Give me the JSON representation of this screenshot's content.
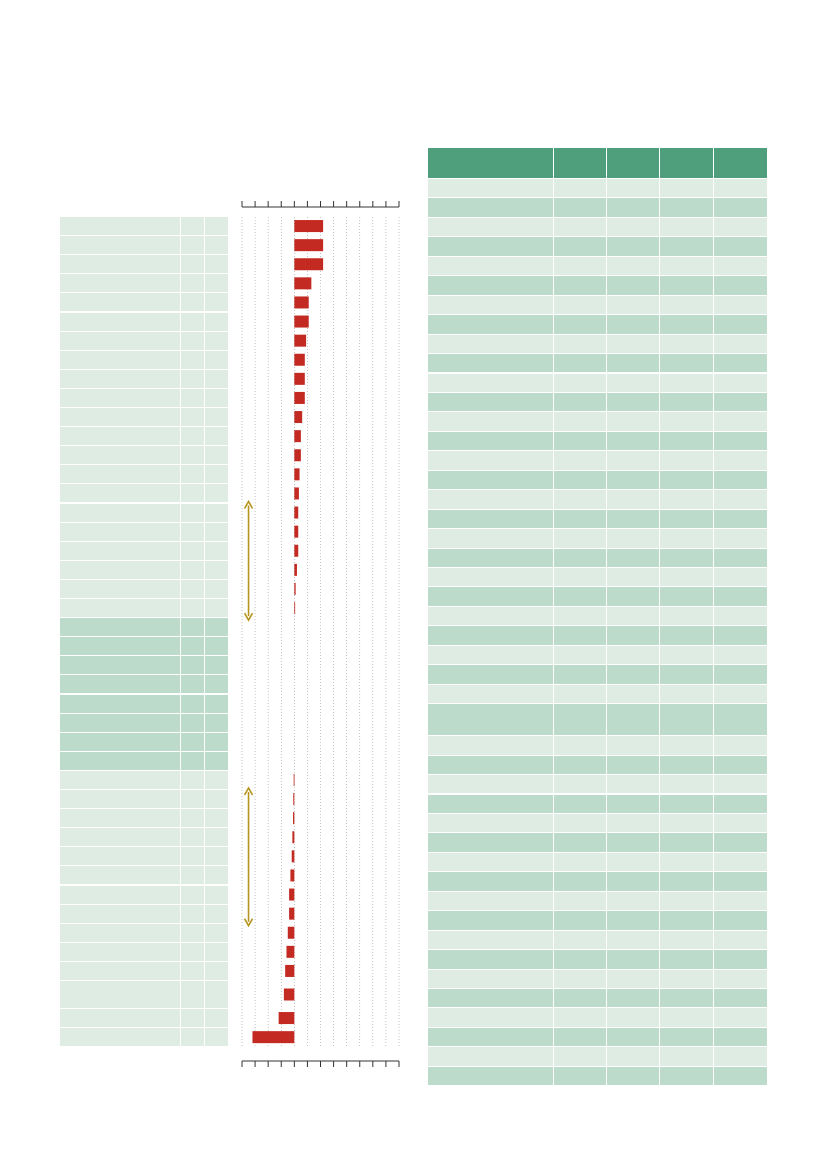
{
  "colors": {
    "light_row": "#deece3",
    "dark_row": "#bddbcb",
    "header": "#509f7c",
    "bar": "#c32a22",
    "arrow": "#b6941d",
    "axis": "#333333",
    "grid": "#9a9a9a"
  },
  "left_table": {
    "columns": 3,
    "rows": [
      {
        "tone": "light",
        "cells": [
          "",
          "",
          ""
        ]
      },
      {
        "tone": "light",
        "cells": [
          "",
          "",
          ""
        ]
      },
      {
        "tone": "light",
        "cells": [
          "",
          "",
          ""
        ]
      },
      {
        "tone": "light",
        "cells": [
          "",
          "",
          ""
        ]
      },
      {
        "tone": "light",
        "cells": [
          "",
          "",
          ""
        ]
      },
      {
        "tone": "light",
        "cells": [
          "",
          "",
          ""
        ]
      },
      {
        "tone": "light",
        "cells": [
          "",
          "",
          ""
        ]
      },
      {
        "tone": "light",
        "cells": [
          "",
          "",
          ""
        ]
      },
      {
        "tone": "light",
        "cells": [
          "",
          "",
          ""
        ]
      },
      {
        "tone": "light",
        "cells": [
          "",
          "",
          ""
        ]
      },
      {
        "tone": "light",
        "cells": [
          "",
          "",
          ""
        ]
      },
      {
        "tone": "light",
        "cells": [
          "",
          "",
          ""
        ]
      },
      {
        "tone": "light",
        "cells": [
          "",
          "",
          ""
        ]
      },
      {
        "tone": "light",
        "cells": [
          "",
          "",
          ""
        ]
      },
      {
        "tone": "light",
        "cells": [
          "",
          "",
          ""
        ]
      },
      {
        "tone": "light",
        "cells": [
          "",
          "",
          ""
        ]
      },
      {
        "tone": "light",
        "cells": [
          "",
          "",
          ""
        ]
      },
      {
        "tone": "light",
        "cells": [
          "",
          "",
          ""
        ]
      },
      {
        "tone": "light",
        "cells": [
          "",
          "",
          ""
        ]
      },
      {
        "tone": "light",
        "cells": [
          "",
          "",
          ""
        ]
      },
      {
        "tone": "light",
        "cells": [
          "",
          "",
          ""
        ]
      },
      {
        "tone": "dark",
        "cells": [
          "",
          "",
          ""
        ]
      },
      {
        "tone": "dark",
        "cells": [
          "",
          "",
          ""
        ]
      },
      {
        "tone": "dark",
        "cells": [
          "",
          "",
          ""
        ]
      },
      {
        "tone": "dark",
        "cells": [
          "",
          "",
          ""
        ]
      },
      {
        "tone": "dark",
        "cells": [
          "",
          "",
          ""
        ]
      },
      {
        "tone": "dark",
        "cells": [
          "",
          "",
          ""
        ]
      },
      {
        "tone": "dark",
        "cells": [
          "",
          "",
          ""
        ]
      },
      {
        "tone": "dark",
        "cells": [
          "",
          "",
          ""
        ]
      },
      {
        "tone": "light",
        "cells": [
          "",
          "",
          ""
        ]
      },
      {
        "tone": "light",
        "cells": [
          "",
          "",
          ""
        ]
      },
      {
        "tone": "light",
        "cells": [
          "",
          "",
          ""
        ]
      },
      {
        "tone": "light",
        "cells": [
          "",
          "",
          ""
        ]
      },
      {
        "tone": "light",
        "cells": [
          "",
          "",
          ""
        ]
      },
      {
        "tone": "light",
        "cells": [
          "",
          "",
          ""
        ]
      },
      {
        "tone": "light",
        "cells": [
          "",
          "",
          ""
        ]
      },
      {
        "tone": "light",
        "cells": [
          "",
          "",
          ""
        ]
      },
      {
        "tone": "light",
        "cells": [
          "",
          "",
          ""
        ]
      },
      {
        "tone": "light",
        "cells": [
          "",
          "",
          ""
        ]
      },
      {
        "tone": "light",
        "cells": [
          "",
          "",
          ""
        ]
      },
      {
        "tone": "light",
        "cells": [
          "",
          "",
          ""
        ],
        "tall": true
      },
      {
        "tone": "light",
        "cells": [
          "",
          "",
          ""
        ]
      },
      {
        "tone": "light",
        "cells": [
          "",
          "",
          ""
        ]
      }
    ]
  },
  "chart_data": {
    "type": "bar",
    "orientation": "horizontal",
    "grid": true,
    "xlim": [
      -4,
      8
    ],
    "ticks": [
      -4,
      -3,
      -2,
      -1,
      0,
      1,
      2,
      3,
      4,
      5,
      6,
      7,
      8
    ],
    "title": "",
    "xlabel": "",
    "ylabel": "",
    "values": [
      2.2,
      2.2,
      2.2,
      1.3,
      1.1,
      1.1,
      0.9,
      0.8,
      0.8,
      0.8,
      0.6,
      0.5,
      0.5,
      0.4,
      0.35,
      0.3,
      0.3,
      0.3,
      0.2,
      0.1,
      0.05,
      0,
      0,
      0,
      0,
      0,
      0,
      0,
      0,
      -0.05,
      -0.08,
      -0.1,
      -0.15,
      -0.2,
      -0.3,
      -0.4,
      -0.4,
      -0.5,
      -0.6,
      -0.7,
      -0.8,
      -1.2,
      -3.2
    ],
    "annotations": [
      {
        "type": "arrow",
        "direction": "both",
        "x": -3.5,
        "from_row": 15,
        "to_row": 20
      },
      {
        "type": "arrow",
        "direction": "both",
        "x": -3.5,
        "from_row": 30,
        "to_row": 36
      }
    ]
  },
  "right_table": {
    "header": [
      "",
      "",
      "",
      "",
      ""
    ],
    "rows": [
      {
        "tone": "light",
        "cells": [
          "",
          "",
          "",
          "",
          ""
        ]
      },
      {
        "tone": "dark",
        "cells": [
          "",
          "",
          "",
          "",
          ""
        ]
      },
      {
        "tone": "light",
        "cells": [
          "",
          "",
          "",
          "",
          ""
        ]
      },
      {
        "tone": "dark",
        "cells": [
          "",
          "",
          "",
          "",
          ""
        ]
      },
      {
        "tone": "light",
        "cells": [
          "",
          "",
          "",
          "",
          ""
        ]
      },
      {
        "tone": "dark",
        "cells": [
          "",
          "",
          "",
          "",
          ""
        ]
      },
      {
        "tone": "light",
        "cells": [
          "",
          "",
          "",
          "",
          ""
        ]
      },
      {
        "tone": "dark",
        "cells": [
          "",
          "",
          "",
          "",
          ""
        ]
      },
      {
        "tone": "light",
        "cells": [
          "",
          "",
          "",
          "",
          ""
        ]
      },
      {
        "tone": "dark",
        "cells": [
          "",
          "",
          "",
          "",
          ""
        ]
      },
      {
        "tone": "light",
        "cells": [
          "",
          "",
          "",
          "",
          ""
        ]
      },
      {
        "tone": "dark",
        "cells": [
          "",
          "",
          "",
          "",
          ""
        ]
      },
      {
        "tone": "light",
        "cells": [
          "",
          "",
          "",
          "",
          ""
        ]
      },
      {
        "tone": "dark",
        "cells": [
          "",
          "",
          "",
          "",
          ""
        ]
      },
      {
        "tone": "light",
        "cells": [
          "",
          "",
          "",
          "",
          ""
        ]
      },
      {
        "tone": "dark",
        "cells": [
          "",
          "",
          "",
          "",
          ""
        ]
      },
      {
        "tone": "light",
        "cells": [
          "",
          "",
          "",
          "",
          ""
        ]
      },
      {
        "tone": "dark",
        "cells": [
          "",
          "",
          "",
          "",
          ""
        ]
      },
      {
        "tone": "light",
        "cells": [
          "",
          "",
          "",
          "",
          ""
        ]
      },
      {
        "tone": "dark",
        "cells": [
          "",
          "",
          "",
          "",
          ""
        ]
      },
      {
        "tone": "light",
        "cells": [
          "",
          "",
          "",
          "",
          ""
        ]
      },
      {
        "tone": "dark",
        "cells": [
          "",
          "",
          "",
          "",
          ""
        ]
      },
      {
        "tone": "light",
        "cells": [
          "",
          "",
          "",
          "",
          ""
        ]
      },
      {
        "tone": "dark",
        "cells": [
          "",
          "",
          "",
          "",
          ""
        ]
      },
      {
        "tone": "light",
        "cells": [
          "",
          "",
          "",
          "",
          ""
        ]
      },
      {
        "tone": "dark",
        "cells": [
          "",
          "",
          "",
          "",
          ""
        ]
      },
      {
        "tone": "light",
        "cells": [
          "",
          "",
          "",
          "",
          ""
        ]
      },
      {
        "tone": "dark",
        "cells": [
          "",
          "",
          "",
          "",
          ""
        ],
        "tall": true
      },
      {
        "tone": "light",
        "cells": [
          "",
          "",
          "",
          "",
          ""
        ]
      },
      {
        "tone": "dark",
        "cells": [
          "",
          "",
          "",
          "",
          ""
        ]
      },
      {
        "tone": "light",
        "cells": [
          "",
          "",
          "",
          "",
          ""
        ]
      },
      {
        "tone": "dark",
        "cells": [
          "",
          "",
          "",
          "",
          ""
        ]
      },
      {
        "tone": "light",
        "cells": [
          "",
          "",
          "",
          "",
          ""
        ]
      },
      {
        "tone": "dark",
        "cells": [
          "",
          "",
          "",
          "",
          ""
        ]
      },
      {
        "tone": "light",
        "cells": [
          "",
          "",
          "",
          "",
          ""
        ]
      },
      {
        "tone": "dark",
        "cells": [
          "",
          "",
          "",
          "",
          ""
        ]
      },
      {
        "tone": "light",
        "cells": [
          "",
          "",
          "",
          "",
          ""
        ]
      },
      {
        "tone": "dark",
        "cells": [
          "",
          "",
          "",
          "",
          ""
        ]
      },
      {
        "tone": "light",
        "cells": [
          "",
          "",
          "",
          "",
          ""
        ]
      },
      {
        "tone": "dark",
        "cells": [
          "",
          "",
          "",
          "",
          ""
        ]
      },
      {
        "tone": "light",
        "cells": [
          "",
          "",
          "",
          "",
          ""
        ]
      },
      {
        "tone": "dark",
        "cells": [
          "",
          "",
          "",
          "",
          ""
        ]
      },
      {
        "tone": "light",
        "cells": [
          "",
          "",
          "",
          "",
          ""
        ]
      },
      {
        "tone": "dark",
        "cells": [
          "",
          "",
          "",
          "",
          ""
        ]
      },
      {
        "tone": "light",
        "cells": [
          "",
          "",
          "",
          "",
          ""
        ]
      },
      {
        "tone": "dark",
        "cells": [
          "",
          "",
          "",
          "",
          ""
        ]
      }
    ]
  }
}
